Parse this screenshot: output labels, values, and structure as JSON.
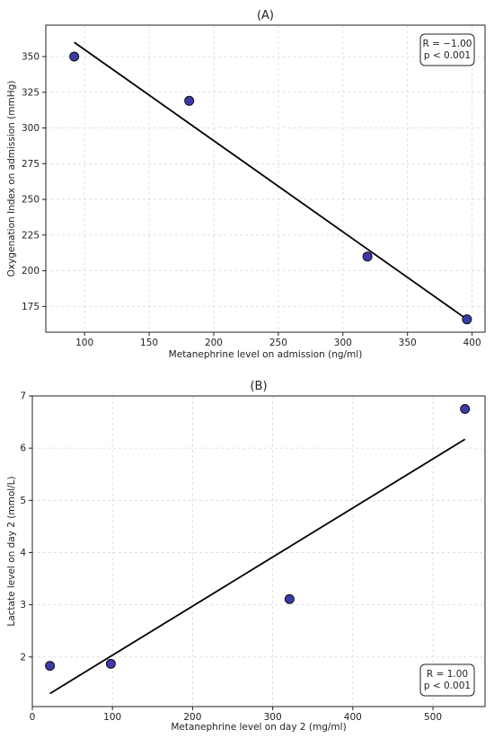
{
  "chart_data": [
    {
      "type": "scatter",
      "title": "(A)",
      "xlabel": "Metanephrine level on admission (ng/ml)",
      "ylabel": "Oxygenation Index on admission (mmHg)",
      "xlim": [
        70,
        410
      ],
      "ylim": [
        157,
        372
      ],
      "xticks": [
        100,
        150,
        200,
        250,
        300,
        350,
        400
      ],
      "yticks": [
        175,
        200,
        225,
        250,
        275,
        300,
        325,
        350
      ],
      "grid": true,
      "points": [
        {
          "x": 92,
          "y": 350
        },
        {
          "x": 181,
          "y": 319
        },
        {
          "x": 319,
          "y": 210
        },
        {
          "x": 396,
          "y": 166
        }
      ],
      "fit_line": [
        {
          "x": 92,
          "y": 360
        },
        {
          "x": 396,
          "y": 166
        }
      ],
      "annotation": {
        "lines": [
          "R = −1.00",
          "p < 0.001"
        ],
        "position": "top-right"
      }
    },
    {
      "type": "scatter",
      "title": "(B)",
      "xlabel": "Metanephrine level on day 2 (mg/ml)",
      "ylabel": "Lactate level on day 2 (mmol/L)",
      "xlim": [
        0,
        565
      ],
      "ylim": [
        1.05,
        7.0
      ],
      "xticks": [
        0,
        100,
        200,
        300,
        400,
        500
      ],
      "yticks": [
        2,
        3,
        4,
        5,
        6,
        7
      ],
      "grid": true,
      "points": [
        {
          "x": 22,
          "y": 1.83
        },
        {
          "x": 98,
          "y": 1.87
        },
        {
          "x": 321,
          "y": 3.11
        },
        {
          "x": 540,
          "y": 6.75
        }
      ],
      "fit_line": [
        {
          "x": 22,
          "y": 1.3
        },
        {
          "x": 540,
          "y": 6.17
        }
      ],
      "annotation": {
        "lines": [
          "R = 1.00",
          "p < 0.001"
        ],
        "position": "bottom-right"
      }
    }
  ]
}
